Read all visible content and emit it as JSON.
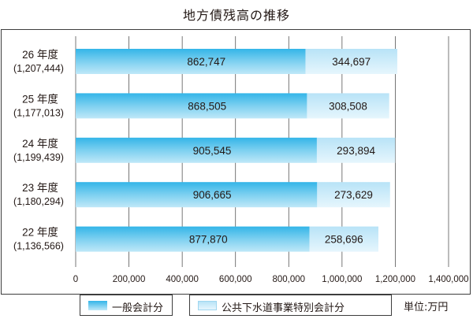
{
  "chart_data": {
    "type": "bar",
    "orientation": "horizontal",
    "stacked": true,
    "title": "地方債残高の推移",
    "unit_label": "単位:万円",
    "categories": [
      "26 年度",
      "25 年度",
      "24 年度",
      "23 年度",
      "22 年度"
    ],
    "category_totals": [
      "(1,207,444)",
      "(1,177,013)",
      "(1,199,439)",
      "(1,180,294)",
      "(1,136,566)"
    ],
    "series": [
      {
        "name": "一般会計分",
        "values": [
          862747,
          868505,
          905545,
          906665,
          877870
        ],
        "color_top": "#33b5e8",
        "color_bottom": "#bfe8f8"
      },
      {
        "name": "公共下水道事業特別会計分",
        "values": [
          344697,
          308508,
          293894,
          273629,
          258696
        ],
        "color_top": "#b8e3f7",
        "color_bottom": "#e6f6fd"
      }
    ],
    "value_labels": [
      [
        "862,747",
        "868,505",
        "905,545",
        "906,665",
        "877,870"
      ],
      [
        "344,697",
        "308,508",
        "293,894",
        "273,629",
        "258,696"
      ]
    ],
    "x_ticks": [
      0,
      200000,
      400000,
      600000,
      800000,
      1000000,
      1200000,
      1400000
    ],
    "x_tick_labels": [
      "0",
      "200,000",
      "400,000",
      "600,000",
      "800,000",
      "1,000,000",
      "1,200,000",
      "1,400,000"
    ],
    "xlim": [
      0,
      1400000
    ],
    "grid": true,
    "legend_position": "bottom"
  }
}
